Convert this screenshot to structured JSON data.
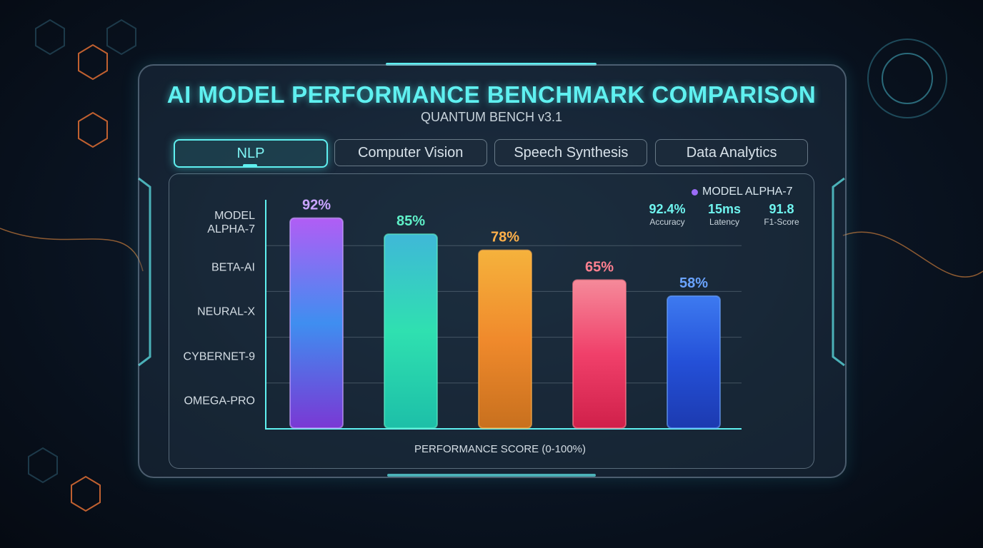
{
  "header": {
    "title": "AI MODEL PERFORMANCE BENCHMARK COMPARISON",
    "subtitle": "QUANTUM BENCH v3.1"
  },
  "tabs": [
    {
      "label": "NLP",
      "active": true
    },
    {
      "label": "Computer Vision",
      "active": false
    },
    {
      "label": "Speech Synthesis",
      "active": false
    },
    {
      "label": "Data Analytics",
      "active": false
    }
  ],
  "legend": {
    "name": "MODEL ALPHA-7",
    "color": "#9b6cf6"
  },
  "stats": [
    {
      "value": "92.4%",
      "label": "Accuracy"
    },
    {
      "value": "15ms",
      "label": "Latency"
    },
    {
      "value": "91.8",
      "label": "F1-Score"
    }
  ],
  "chart_data": {
    "type": "bar",
    "categories": [
      "MODEL ALPHA-7",
      "BETA-AI",
      "NEURAL-X",
      "CYBERNET-9",
      "OMEGA-PRO"
    ],
    "values": [
      92,
      85,
      78,
      65,
      58
    ],
    "value_labels": [
      "92%",
      "85%",
      "78%",
      "65%",
      "58%"
    ],
    "colors": [
      [
        "#b15df5",
        "#3f8ef0",
        "#7a38d4"
      ],
      [
        "#3fb8d8",
        "#2fe0b0",
        "#1dbfa8"
      ],
      [
        "#f5b23c",
        "#f08a2c",
        "#c8701e"
      ],
      [
        "#f58a9a",
        "#f0406a",
        "#d0204a"
      ],
      [
        "#3d7af0",
        "#2450d8",
        "#1c3ab0"
      ]
    ],
    "label_colors": [
      "#c9a4ff",
      "#5ff0c8",
      "#ffb04a",
      "#ff8090",
      "#6aa4ff"
    ],
    "x_label": "PERFORMANCE SCORE (0-100%)",
    "ylim": [
      0,
      100
    ],
    "gridlines": [
      20,
      40,
      60,
      80
    ]
  }
}
